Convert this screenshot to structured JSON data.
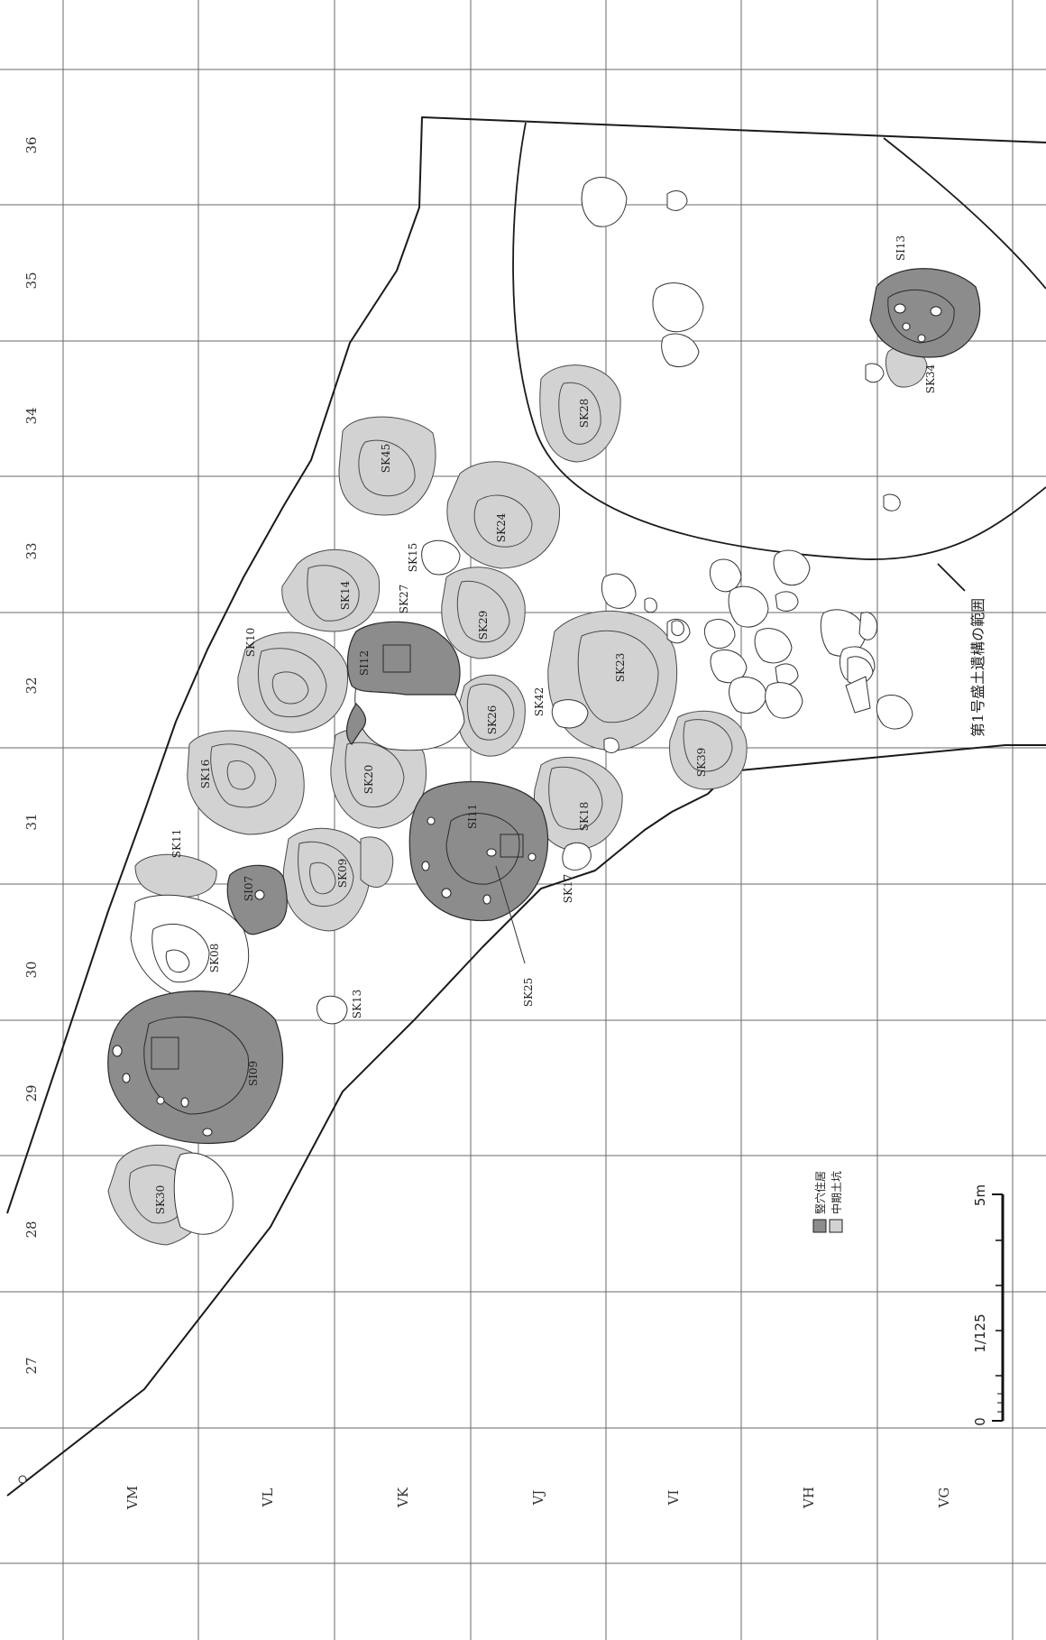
{
  "grid": {
    "columns": [
      "VM",
      "VL",
      "VK",
      "VJ",
      "VI",
      "VH",
      "VG"
    ],
    "rows": [
      "36",
      "35",
      "34",
      "33",
      "32",
      "31",
      "30",
      "29",
      "28",
      "27"
    ]
  },
  "features": {
    "SK45": "SK45",
    "SK28": "SK28",
    "SK24": "SK24",
    "SK15": "SK15",
    "SK14": "SK14",
    "SK27": "SK27",
    "SK29": "SK29",
    "SK10": "SK10",
    "SI12": "SI12",
    "SK23": "SK23",
    "SK42": "SK42",
    "SK26": "SK26",
    "SK16": "SK16",
    "SK20": "SK20",
    "SK39": "SK39",
    "SI11": "SI11",
    "SK18": "SK18",
    "SK11": "SK11",
    "SI07": "SI07",
    "SK09": "SK09",
    "SK17": "SK17",
    "SK08": "SK08",
    "SK25": "SK25",
    "SK13": "SK13",
    "SI09": "SI09",
    "SK30": "SK30",
    "SI13": "SI13",
    "SK34": "SK34"
  },
  "mound_label": "第1号盛土遺構の範囲",
  "legend": {
    "dwelling": "竪穴住居",
    "middle_pit": "中期土坑"
  },
  "scale": {
    "ratio": "1/125",
    "zero": "0",
    "max": "5m"
  },
  "colors": {
    "dwelling_fill": "#8c8c8c",
    "pit_fill": "#d2d2d2",
    "grid": "#6a6a6a"
  }
}
